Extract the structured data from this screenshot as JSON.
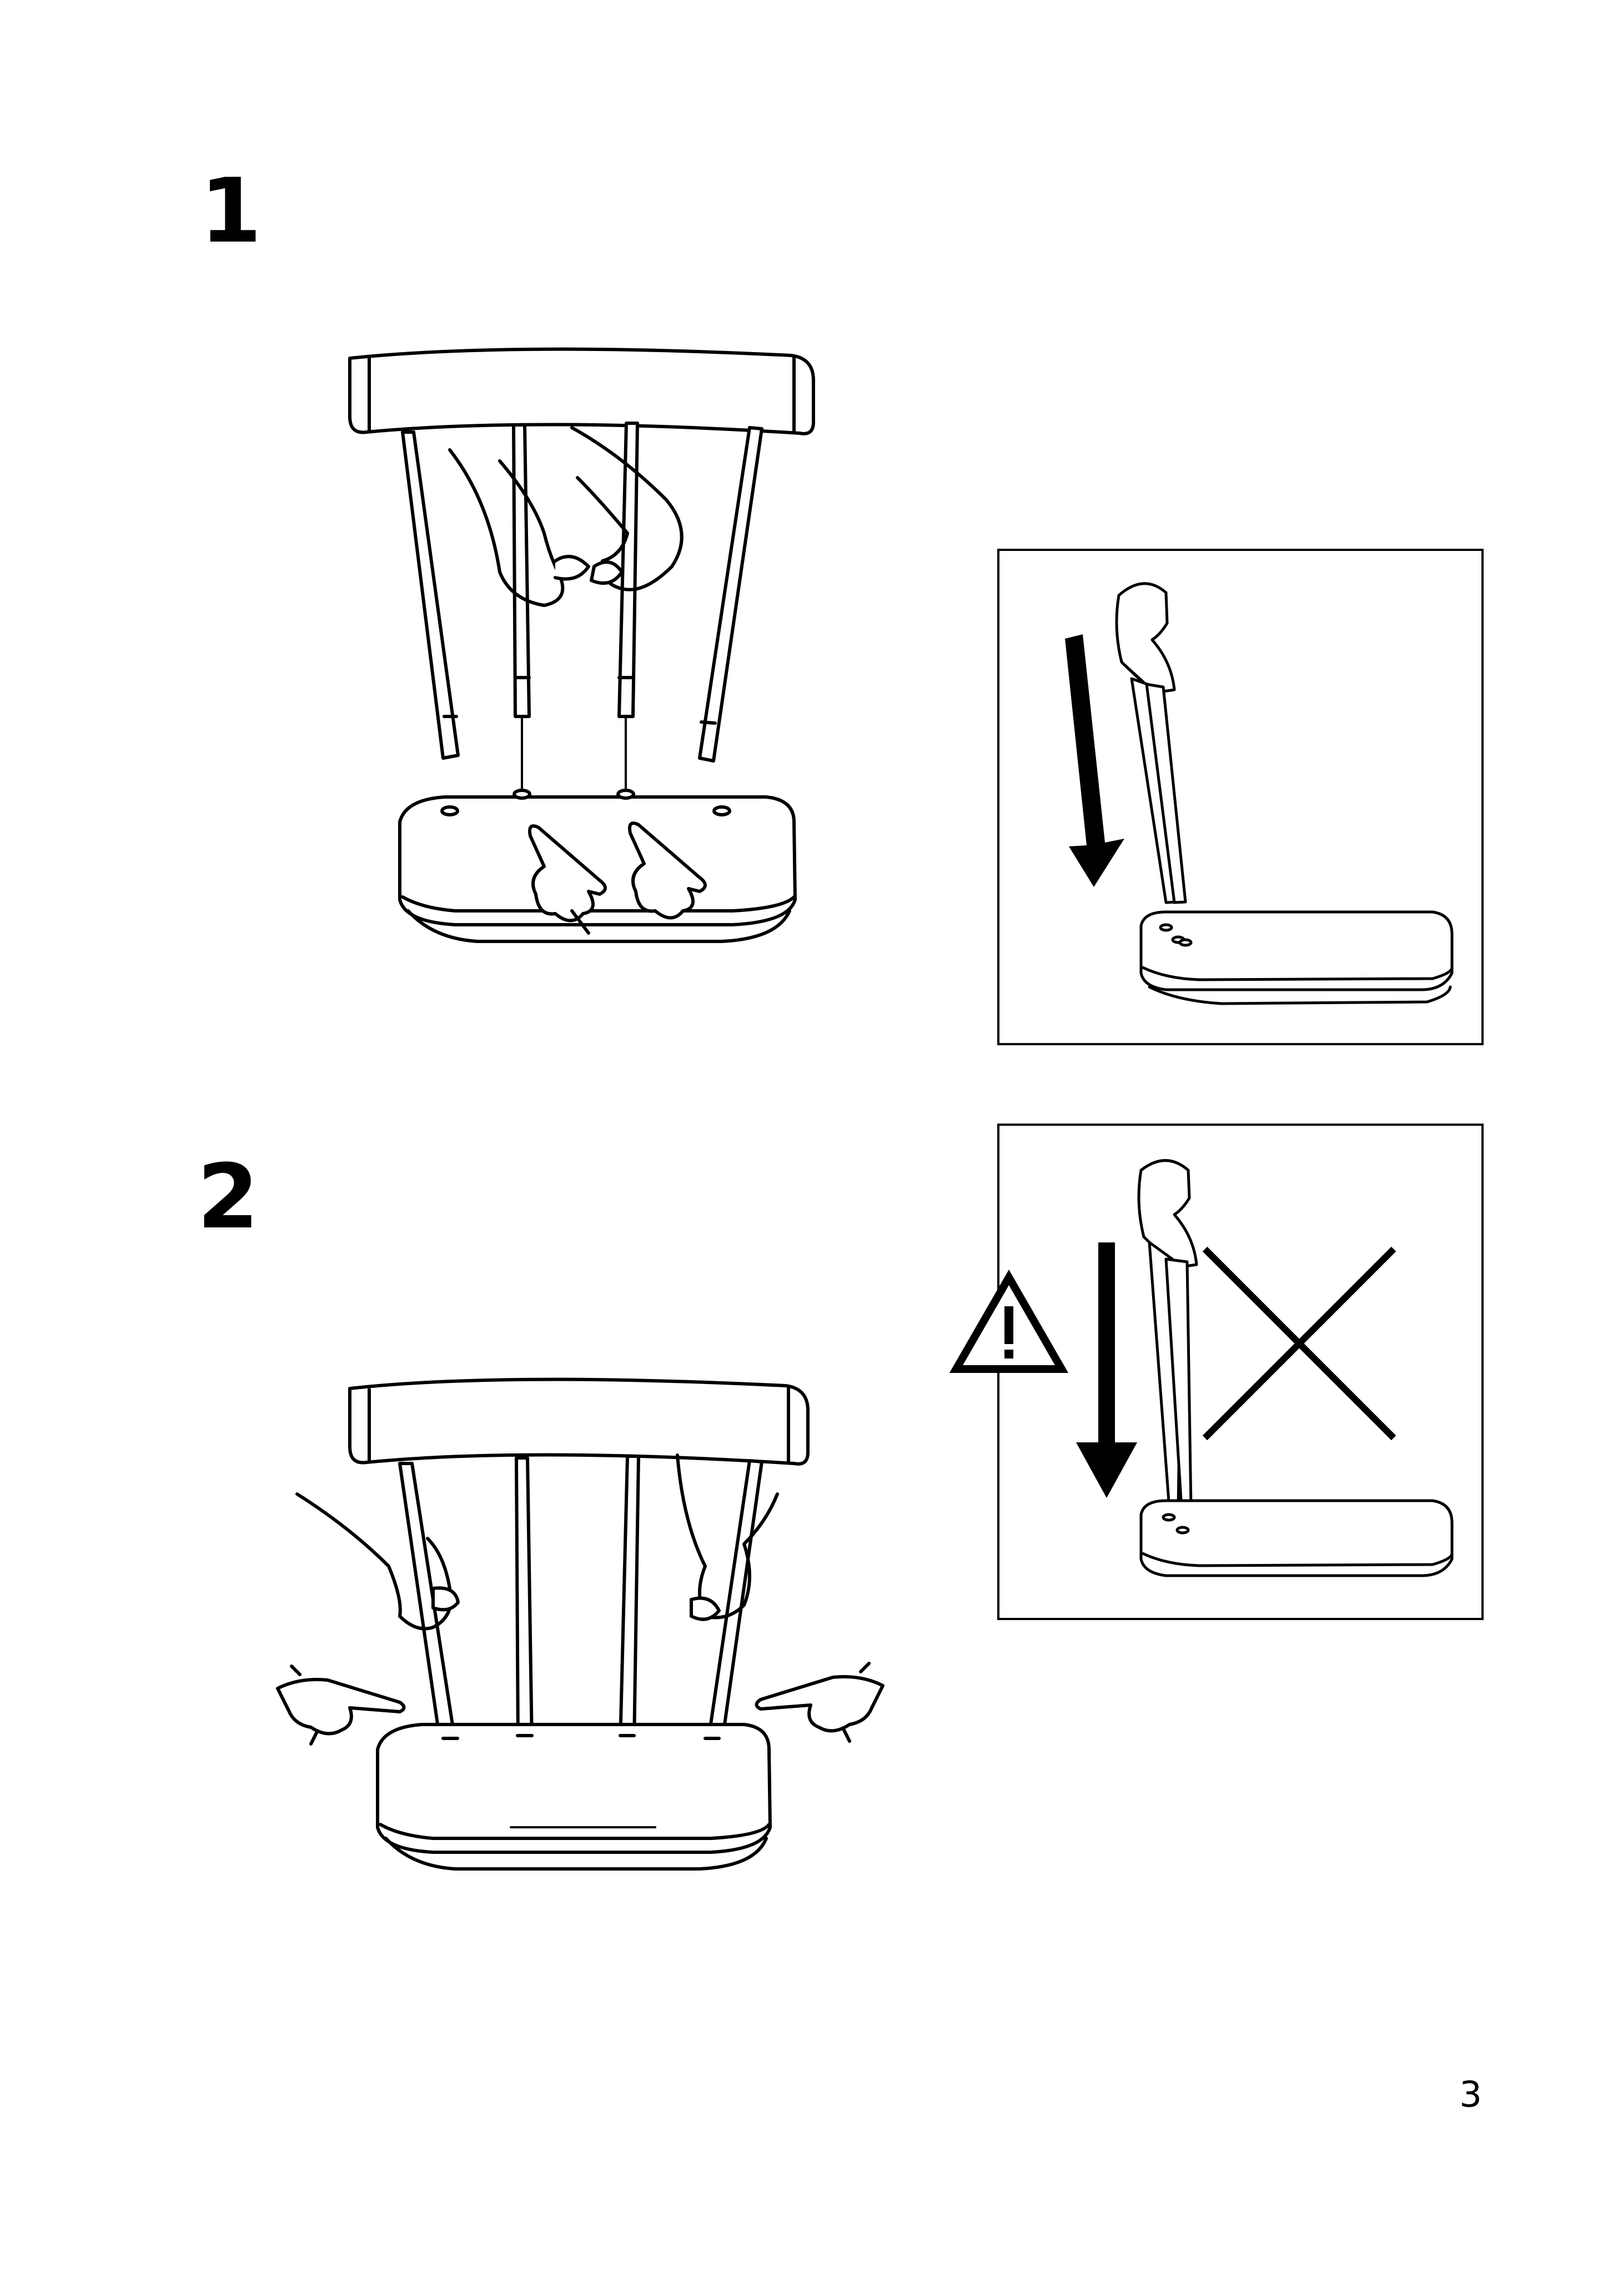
{
  "steps": [
    {
      "number": "1"
    },
    {
      "number": "2"
    }
  ],
  "icons": {
    "warning": "warning-triangle-icon",
    "cross": "cross-icon",
    "arrow": "down-arrow-icon"
  },
  "page": {
    "number": "3"
  },
  "colors": {
    "ink": "#000000",
    "paper": "#ffffff"
  }
}
